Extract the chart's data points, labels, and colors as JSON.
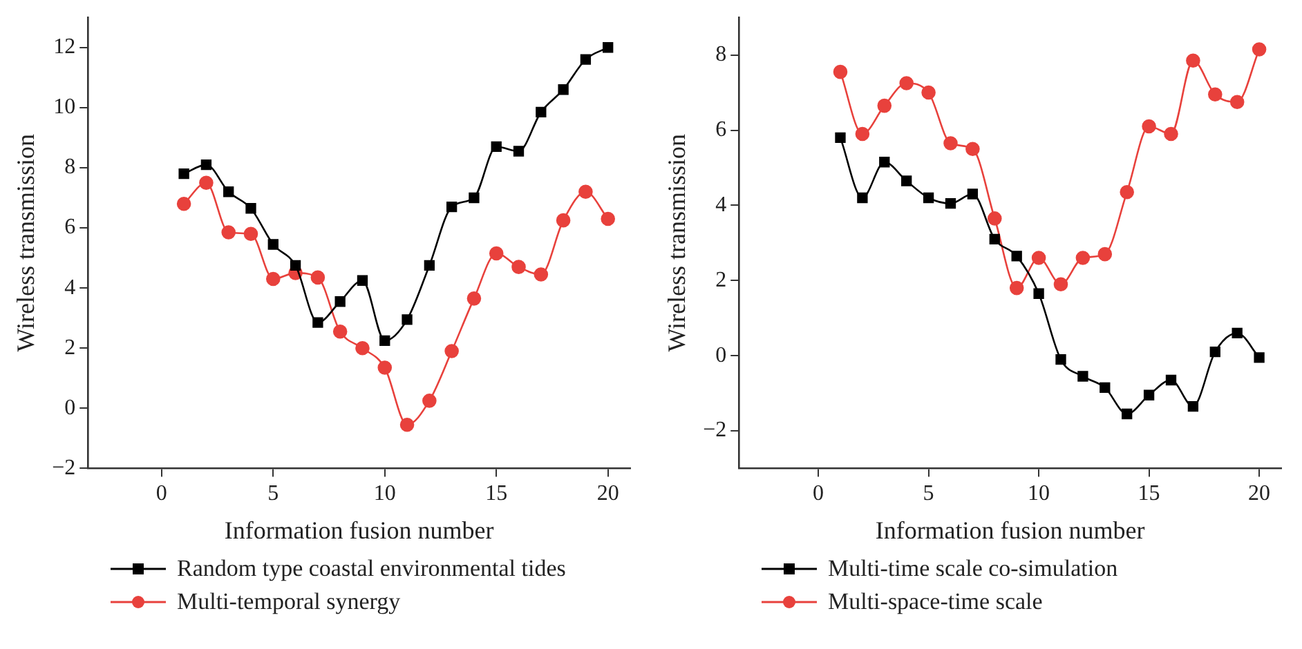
{
  "chart_data": [
    {
      "type": "line",
      "xlabel": "Information fusion number",
      "ylabel": "Wireless transmission",
      "x": [
        1,
        2,
        3,
        4,
        5,
        6,
        7,
        8,
        9,
        10,
        11,
        12,
        13,
        14,
        15,
        16,
        17,
        18,
        19,
        20
      ],
      "xlim": [
        -3.3,
        21
      ],
      "xticks": [
        0,
        5,
        10,
        15,
        20
      ],
      "ylim": [
        -2,
        13
      ],
      "yticks": [
        -2,
        0,
        2,
        4,
        6,
        8,
        10,
        12
      ],
      "grid": false,
      "legend": "bottom",
      "series": [
        {
          "name": "Random type coastal environmental tides",
          "color": "#000000",
          "marker": "square",
          "values": [
            7.8,
            8.1,
            7.2,
            6.65,
            5.45,
            4.75,
            2.85,
            3.55,
            4.25,
            2.25,
            2.95,
            4.75,
            6.7,
            7.0,
            8.7,
            8.55,
            9.85,
            10.6,
            11.6,
            12.0
          ]
        },
        {
          "name": "Multi-temporal synergy",
          "color": "#e8413c",
          "marker": "circle",
          "values": [
            6.8,
            7.5,
            5.85,
            5.8,
            4.3,
            4.5,
            4.35,
            2.55,
            2.0,
            1.35,
            -0.55,
            0.25,
            1.9,
            3.65,
            5.15,
            4.7,
            4.45,
            6.25,
            7.2,
            6.3
          ]
        }
      ]
    },
    {
      "type": "line",
      "xlabel": "Information fusion number",
      "ylabel": "Wireless transmission",
      "x": [
        1,
        2,
        3,
        4,
        5,
        6,
        7,
        8,
        9,
        10,
        11,
        12,
        13,
        14,
        15,
        16,
        17,
        18,
        19,
        20
      ],
      "xlim": [
        -3.6,
        21
      ],
      "xticks": [
        0,
        5,
        10,
        15,
        20
      ],
      "ylim": [
        -3,
        9
      ],
      "yticks": [
        -2,
        0,
        2,
        4,
        6,
        8
      ],
      "grid": false,
      "legend": "bottom",
      "series": [
        {
          "name": "Multi-time scale co-simulation",
          "color": "#000000",
          "marker": "square",
          "values": [
            5.8,
            4.2,
            5.15,
            4.65,
            4.2,
            4.05,
            4.3,
            3.1,
            2.65,
            1.65,
            -0.1,
            -0.55,
            -0.85,
            -1.55,
            -1.05,
            -0.65,
            -1.35,
            0.1,
            0.6,
            -0.05
          ]
        },
        {
          "name": "Multi-space-time scale",
          "color": "#e8413c",
          "marker": "circle",
          "values": [
            7.55,
            5.9,
            6.65,
            7.25,
            7.0,
            5.65,
            5.5,
            3.65,
            1.8,
            2.6,
            1.9,
            2.6,
            2.7,
            4.35,
            6.1,
            5.9,
            7.85,
            6.95,
            6.75,
            8.15
          ]
        }
      ]
    }
  ]
}
